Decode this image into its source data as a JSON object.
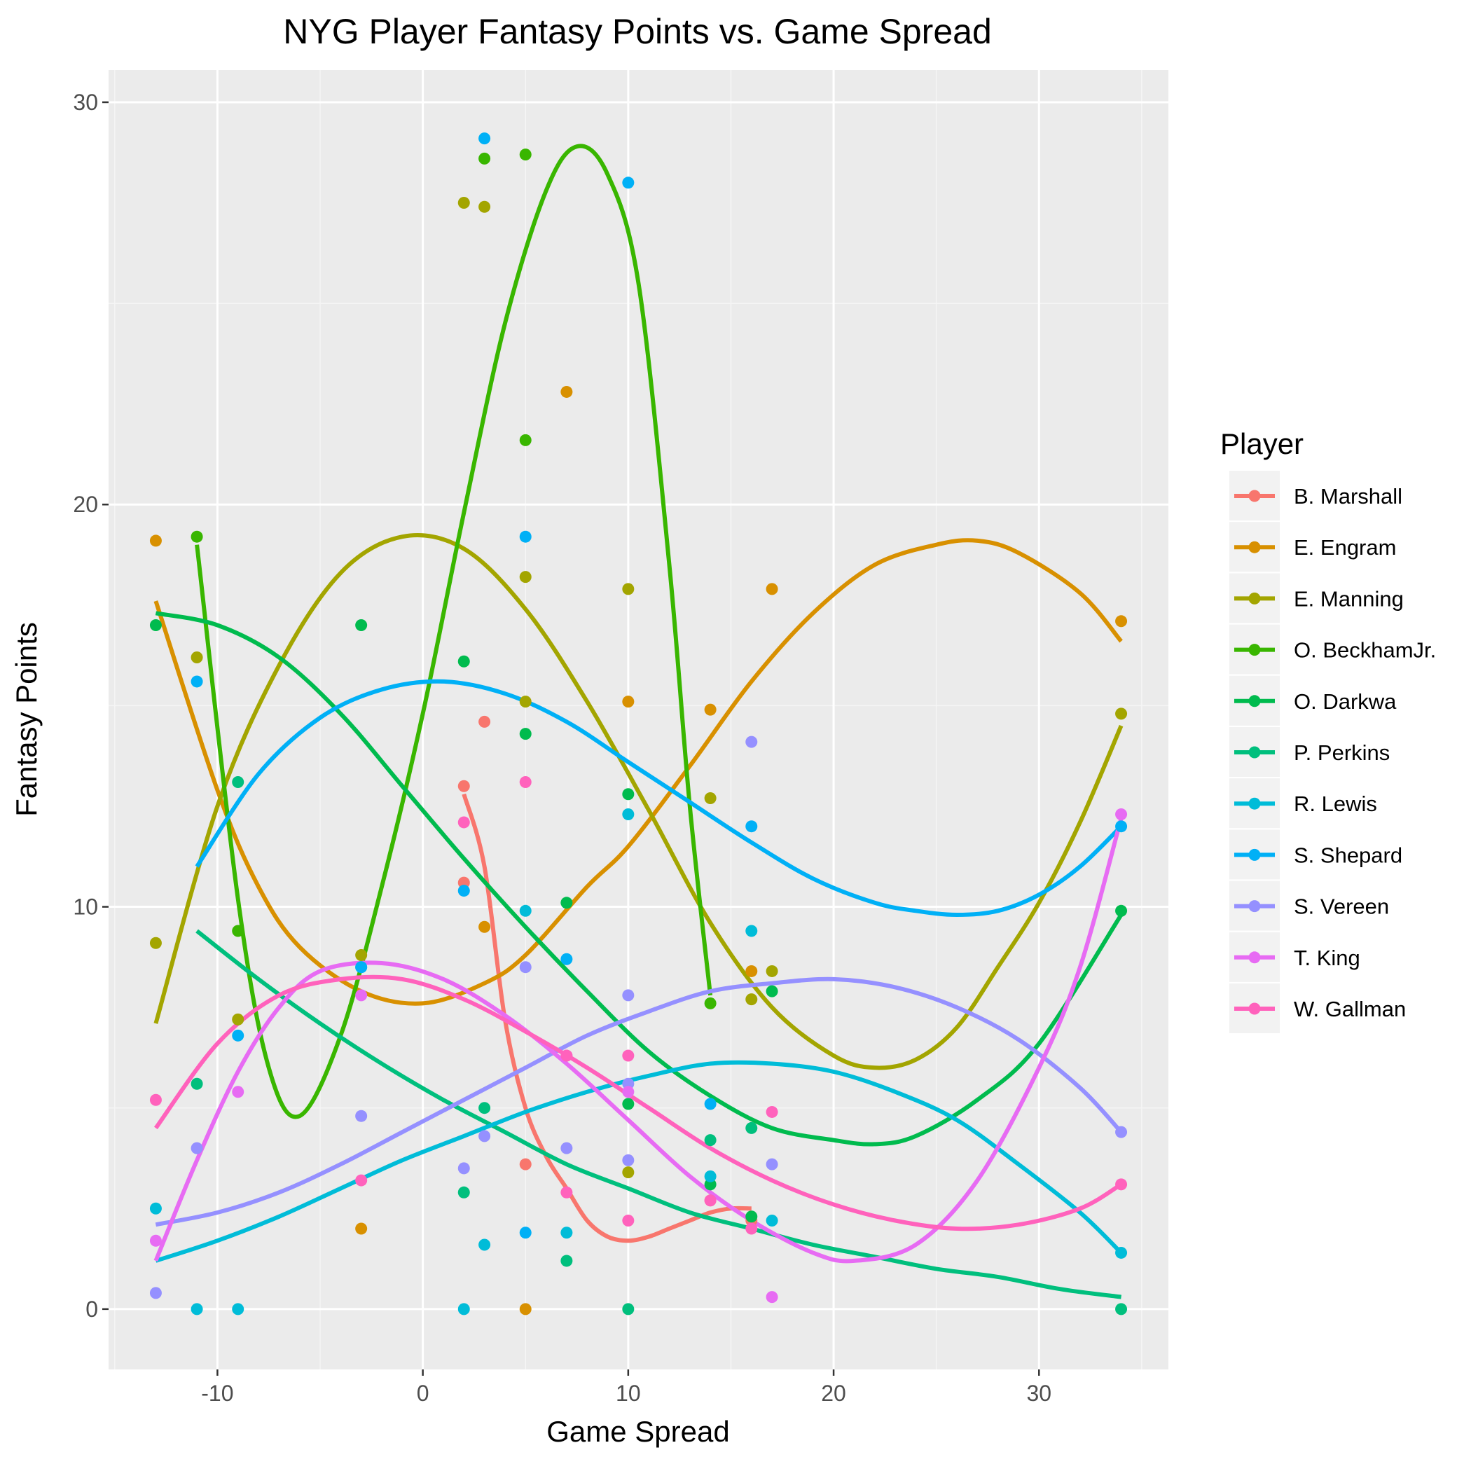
{
  "chart_data": {
    "type": "scatter",
    "title": "NYG Player Fantasy Points vs. Game Spread",
    "xlabel": "Game Spread",
    "ylabel": "Fantasy Points",
    "xlim": [
      -15.3,
      36.3
    ],
    "ylim": [
      -1.5,
      30.8
    ],
    "xticks": [
      -10,
      0,
      10,
      20,
      30
    ],
    "yticks": [
      0,
      10,
      20,
      30
    ],
    "grid": true,
    "legend": {
      "title": "Player",
      "position": "right"
    },
    "series": [
      {
        "name": "B. Marshall",
        "color": "#F8766D",
        "points": [
          [
            2,
            13
          ],
          [
            2,
            10.6
          ],
          [
            3,
            14.6
          ],
          [
            5,
            3.6
          ],
          [
            14,
            2.7
          ],
          [
            16,
            2.2
          ]
        ],
        "curve": [
          [
            2,
            12.8
          ],
          [
            3,
            11
          ],
          [
            4,
            7.2
          ],
          [
            5,
            5
          ],
          [
            6,
            3.8
          ],
          [
            7,
            3
          ],
          [
            8,
            2.2
          ],
          [
            9,
            1.8
          ],
          [
            10,
            1.7
          ],
          [
            11,
            1.8
          ],
          [
            12,
            2
          ],
          [
            13,
            2.2
          ],
          [
            14,
            2.4
          ],
          [
            15,
            2.5
          ],
          [
            16,
            2.5
          ]
        ]
      },
      {
        "name": "E. Engram",
        "color": "#D89000",
        "points": [
          [
            -13,
            19.1
          ],
          [
            -3,
            2
          ],
          [
            3,
            9.5
          ],
          [
            5,
            0
          ],
          [
            7,
            22.8
          ],
          [
            10,
            15.1
          ],
          [
            14,
            14.9
          ],
          [
            16,
            8.4
          ],
          [
            17,
            17.9
          ],
          [
            34,
            17.1
          ]
        ],
        "curve": [
          [
            -13,
            17.6
          ],
          [
            -10,
            12.9
          ],
          [
            -8,
            10.5
          ],
          [
            -6,
            9
          ],
          [
            -3,
            7.9
          ],
          [
            0,
            7.6
          ],
          [
            3,
            8.1
          ],
          [
            5,
            8.8
          ],
          [
            8,
            10.5
          ],
          [
            10,
            11.5
          ],
          [
            13,
            13.5
          ],
          [
            16,
            15.6
          ],
          [
            19,
            17.3
          ],
          [
            22,
            18.5
          ],
          [
            25,
            19
          ],
          [
            27,
            19.1
          ],
          [
            29,
            18.8
          ],
          [
            32,
            17.8
          ],
          [
            34,
            16.6
          ]
        ]
      },
      {
        "name": "E. Manning",
        "color": "#A3A500",
        "points": [
          [
            -13,
            9.1
          ],
          [
            -11,
            16.2
          ],
          [
            -9,
            7.2
          ],
          [
            -3,
            8.8
          ],
          [
            2,
            27.5
          ],
          [
            3,
            27.4
          ],
          [
            5,
            15.1
          ],
          [
            5,
            18.2
          ],
          [
            10,
            17.9
          ],
          [
            10,
            3.4
          ],
          [
            14,
            12.7
          ],
          [
            16,
            7.7
          ],
          [
            17,
            8.4
          ],
          [
            34,
            14.8
          ]
        ],
        "curve": [
          [
            -13,
            7.1
          ],
          [
            -10,
            12.5
          ],
          [
            -7,
            16
          ],
          [
            -4,
            18.3
          ],
          [
            -1,
            19.2
          ],
          [
            2,
            18.9
          ],
          [
            5,
            17.4
          ],
          [
            8,
            15.1
          ],
          [
            11,
            12.4
          ],
          [
            14,
            9.6
          ],
          [
            17,
            7.5
          ],
          [
            20,
            6.3
          ],
          [
            22,
            6
          ],
          [
            24,
            6.2
          ],
          [
            26,
            7
          ],
          [
            28,
            8.5
          ],
          [
            30,
            10.1
          ],
          [
            32,
            12.1
          ],
          [
            34,
            14.5
          ]
        ]
      },
      {
        "name": "O. BeckhamJr.",
        "color": "#39B600",
        "points": [
          [
            -11,
            19.2
          ],
          [
            -9,
            9.4
          ],
          [
            3,
            28.6
          ],
          [
            5,
            28.7
          ],
          [
            5,
            21.6
          ],
          [
            14,
            7.6
          ]
        ],
        "curve": [
          [
            -11,
            19
          ],
          [
            -9,
            10.2
          ],
          [
            -7.5,
            6
          ],
          [
            -6,
            4.8
          ],
          [
            -4,
            6.8
          ],
          [
            -2,
            10.5
          ],
          [
            0,
            14.8
          ],
          [
            2,
            19.8
          ],
          [
            4,
            24.5
          ],
          [
            6,
            27.8
          ],
          [
            7.5,
            28.9
          ],
          [
            9,
            28.2
          ],
          [
            10.5,
            25.5
          ],
          [
            12,
            18.5
          ],
          [
            13,
            12.5
          ],
          [
            14,
            7.8
          ]
        ]
      },
      {
        "name": "O. Darkwa",
        "color": "#00BB4E",
        "points": [
          [
            -13,
            17
          ],
          [
            -3,
            17
          ],
          [
            2,
            16.1
          ],
          [
            5,
            14.3
          ],
          [
            7,
            10.1
          ],
          [
            10,
            12.8
          ],
          [
            10,
            5.1
          ],
          [
            14,
            3.1
          ],
          [
            16,
            2.3
          ],
          [
            17,
            7.9
          ],
          [
            34,
            9.9
          ]
        ],
        "curve": [
          [
            -13,
            17.3
          ],
          [
            -10,
            17
          ],
          [
            -7,
            16.2
          ],
          [
            -4,
            14.8
          ],
          [
            -1,
            13
          ],
          [
            2,
            11.2
          ],
          [
            5,
            9.5
          ],
          [
            8,
            7.9
          ],
          [
            11,
            6.4
          ],
          [
            14,
            5.3
          ],
          [
            17,
            4.5
          ],
          [
            20,
            4.2
          ],
          [
            22,
            4.1
          ],
          [
            24,
            4.3
          ],
          [
            27,
            5.2
          ],
          [
            30,
            6.6
          ],
          [
            34,
            9.8
          ]
        ]
      },
      {
        "name": "P. Perkins",
        "color": "#00BF7D",
        "points": [
          [
            -11,
            5.6
          ],
          [
            -9,
            13.1
          ],
          [
            2,
            2.9
          ],
          [
            3,
            5
          ],
          [
            7,
            1.2
          ],
          [
            10,
            0
          ],
          [
            14,
            4.2
          ],
          [
            16,
            4.5
          ],
          [
            34,
            0
          ]
        ],
        "curve": [
          [
            -11,
            9.4
          ],
          [
            -8,
            8.2
          ],
          [
            -5,
            7.1
          ],
          [
            -2,
            6.1
          ],
          [
            1,
            5.2
          ],
          [
            4,
            4.4
          ],
          [
            7,
            3.6
          ],
          [
            10,
            3
          ],
          [
            13,
            2.4
          ],
          [
            16,
            2
          ],
          [
            19,
            1.6
          ],
          [
            22,
            1.3
          ],
          [
            25,
            1
          ],
          [
            28,
            0.8
          ],
          [
            31,
            0.5
          ],
          [
            34,
            0.3
          ]
        ]
      },
      {
        "name": "R. Lewis",
        "color": "#00BCD8",
        "points": [
          [
            -13,
            2.5
          ],
          [
            -11,
            0
          ],
          [
            -9,
            0
          ],
          [
            -3,
            8.5
          ],
          [
            2,
            0
          ],
          [
            3,
            1.6
          ],
          [
            5,
            9.9
          ],
          [
            7,
            1.9
          ],
          [
            10,
            12.3
          ],
          [
            14,
            3.3
          ],
          [
            16,
            9.4
          ],
          [
            17,
            2.2
          ],
          [
            34,
            1.4
          ]
        ],
        "curve": [
          [
            -13,
            1.2
          ],
          [
            -10,
            1.7
          ],
          [
            -7,
            2.3
          ],
          [
            -4,
            3
          ],
          [
            -1,
            3.7
          ],
          [
            2,
            4.3
          ],
          [
            5,
            4.9
          ],
          [
            8,
            5.4
          ],
          [
            11,
            5.8
          ],
          [
            14,
            6.1
          ],
          [
            17,
            6.1
          ],
          [
            20,
            5.9
          ],
          [
            23,
            5.4
          ],
          [
            26,
            4.7
          ],
          [
            29,
            3.6
          ],
          [
            32,
            2.4
          ],
          [
            34,
            1.4
          ]
        ]
      },
      {
        "name": "S. Shepard",
        "color": "#00B0F6",
        "points": [
          [
            -11,
            15.6
          ],
          [
            -9,
            6.8
          ],
          [
            -3,
            8.5
          ],
          [
            2,
            10.4
          ],
          [
            3,
            29.1
          ],
          [
            5,
            1.9
          ],
          [
            5,
            19.2
          ],
          [
            7,
            8.7
          ],
          [
            10,
            28
          ],
          [
            14,
            5.1
          ],
          [
            16,
            12
          ],
          [
            34,
            12
          ]
        ],
        "curve": [
          [
            -11,
            11
          ],
          [
            -8,
            13.3
          ],
          [
            -5,
            14.7
          ],
          [
            -2,
            15.4
          ],
          [
            1,
            15.6
          ],
          [
            4,
            15.3
          ],
          [
            7,
            14.6
          ],
          [
            10,
            13.6
          ],
          [
            13,
            12.6
          ],
          [
            16,
            11.6
          ],
          [
            19,
            10.7
          ],
          [
            22,
            10.1
          ],
          [
            24,
            9.9
          ],
          [
            26,
            9.8
          ],
          [
            28,
            9.9
          ],
          [
            30,
            10.3
          ],
          [
            32,
            11
          ],
          [
            34,
            12
          ]
        ]
      },
      {
        "name": "S. Vereen",
        "color": "#9590FF",
        "points": [
          [
            -13,
            0.4
          ],
          [
            -11,
            4
          ],
          [
            -3,
            4.8
          ],
          [
            2,
            3.5
          ],
          [
            3,
            4.3
          ],
          [
            5,
            8.5
          ],
          [
            7,
            4
          ],
          [
            10,
            7.8
          ],
          [
            10,
            5.6
          ],
          [
            10,
            3.7
          ],
          [
            16,
            14.1
          ],
          [
            17,
            3.6
          ],
          [
            34,
            4.4
          ]
        ],
        "curve": [
          [
            -13,
            2.1
          ],
          [
            -10,
            2.4
          ],
          [
            -7,
            2.9
          ],
          [
            -4,
            3.6
          ],
          [
            -1,
            4.4
          ],
          [
            2,
            5.2
          ],
          [
            5,
            6
          ],
          [
            8,
            6.8
          ],
          [
            11,
            7.4
          ],
          [
            14,
            7.9
          ],
          [
            17,
            8.1
          ],
          [
            20,
            8.2
          ],
          [
            23,
            8
          ],
          [
            26,
            7.5
          ],
          [
            29,
            6.7
          ],
          [
            32,
            5.5
          ],
          [
            34,
            4.4
          ]
        ]
      },
      {
        "name": "T. King",
        "color": "#E76BF3",
        "points": [
          [
            -13,
            1.7
          ],
          [
            -9,
            5.4
          ],
          [
            -3,
            7.8
          ],
          [
            7,
            6.3
          ],
          [
            10,
            5.4
          ],
          [
            17,
            0.3
          ],
          [
            34,
            12.3
          ]
        ],
        "curve": [
          [
            -13,
            1.2
          ],
          [
            -11,
            3.7
          ],
          [
            -9,
            5.9
          ],
          [
            -7,
            7.5
          ],
          [
            -5,
            8.4
          ],
          [
            -2,
            8.6
          ],
          [
            1,
            8.2
          ],
          [
            4,
            7.3
          ],
          [
            7,
            6.1
          ],
          [
            10,
            4.7
          ],
          [
            13,
            3.3
          ],
          [
            16,
            2.2
          ],
          [
            19,
            1.4
          ],
          [
            21,
            1.2
          ],
          [
            24,
            1.6
          ],
          [
            27,
            3.2
          ],
          [
            30,
            6
          ],
          [
            32,
            8.5
          ],
          [
            34,
            12.2
          ]
        ]
      },
      {
        "name": "W. Gallman",
        "color": "#FF62BC",
        "points": [
          [
            -13,
            5.2
          ],
          [
            -3,
            3.2
          ],
          [
            2,
            12.1
          ],
          [
            5,
            13.1
          ],
          [
            7,
            2.9
          ],
          [
            7,
            6.3
          ],
          [
            10,
            6.3
          ],
          [
            10,
            2.2
          ],
          [
            14,
            2.7
          ],
          [
            16,
            2
          ],
          [
            17,
            4.9
          ],
          [
            34,
            3.1
          ]
        ],
        "curve": [
          [
            -13,
            4.5
          ],
          [
            -10,
            6.6
          ],
          [
            -7,
            7.8
          ],
          [
            -4,
            8.2
          ],
          [
            -1,
            8.2
          ],
          [
            2,
            7.7
          ],
          [
            5,
            6.9
          ],
          [
            8,
            6
          ],
          [
            11,
            5
          ],
          [
            14,
            4
          ],
          [
            17,
            3.2
          ],
          [
            20,
            2.6
          ],
          [
            23,
            2.2
          ],
          [
            26,
            2
          ],
          [
            29,
            2.1
          ],
          [
            32,
            2.5
          ],
          [
            34,
            3.1
          ]
        ]
      }
    ]
  }
}
